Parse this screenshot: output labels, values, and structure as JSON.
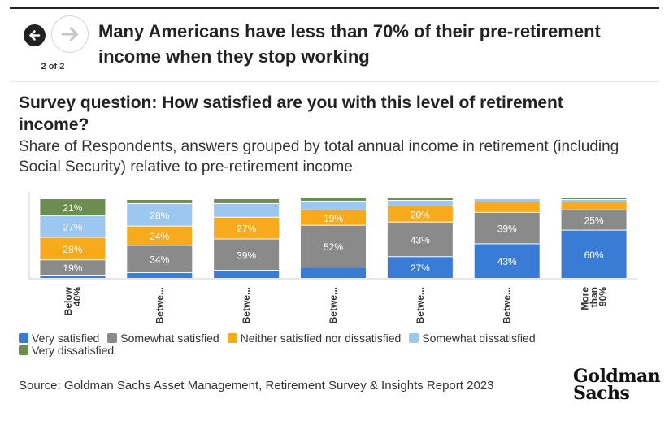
{
  "nav": {
    "page_indicator": "2 of 2",
    "back_icon": "arrow-left-icon",
    "forward_icon": "arrow-right-icon"
  },
  "slide_title": "Many Americans have less than 70% of their pre-retirement income when they stop working",
  "chart_title": "Survey question: How satisfied are you with this level of retirement income?",
  "chart_subtitle": "Share of Respondents, answers grouped by total annual income in retirement (including Social Security) relative to pre-retirement income",
  "colors": {
    "very_satisfied": "#3a7bd5",
    "somewhat_satisfied": "#8a8a8a",
    "neither": "#f6aa1c",
    "somewhat_dissatisfied": "#9cc7f0",
    "very_dissatisfied": "#6b8e4e"
  },
  "chart_data": {
    "type": "bar",
    "stacked": true,
    "categories": [
      "Below 40%",
      "Betwe...",
      "Betwe...",
      "Betwe...",
      "Betwe...",
      "Betwe...",
      "More than 90%"
    ],
    "series": [
      {
        "name": "Very satisfied",
        "values": [
          4,
          7,
          10,
          14,
          27,
          43,
          60
        ]
      },
      {
        "name": "Somewhat satisfied",
        "values": [
          19,
          34,
          39,
          52,
          43,
          39,
          25
        ]
      },
      {
        "name": "Neither satisfied nor dissatisfied",
        "values": [
          28,
          24,
          27,
          19,
          20,
          13,
          10
        ]
      },
      {
        "name": "Somewhat dissatisfied",
        "values": [
          27,
          28,
          17,
          11,
          7,
          4,
          3
        ]
      },
      {
        "name": "Very dissatisfied",
        "values": [
          21,
          5,
          6,
          4,
          3,
          1,
          2
        ]
      }
    ],
    "data_labels": [
      [
        "",
        "19%",
        "28%",
        "27%",
        "21%"
      ],
      [
        "",
        "34%",
        "24%",
        "28%",
        ""
      ],
      [
        "",
        "39%",
        "27%",
        "",
        ""
      ],
      [
        "",
        "52%",
        "19%",
        "",
        ""
      ],
      [
        "27%",
        "43%",
        "20%",
        "",
        ""
      ],
      [
        "43%",
        "39%",
        "",
        "",
        ""
      ],
      [
        "60%",
        "25%",
        "",
        "",
        ""
      ]
    ],
    "ylim": [
      0,
      100
    ],
    "legend_position": "bottom"
  },
  "source": "Source: Goldman Sachs Asset Management, Retirement Survey & Insights Report 2023",
  "logo": {
    "line1": "Goldman",
    "line2": "Sachs"
  }
}
